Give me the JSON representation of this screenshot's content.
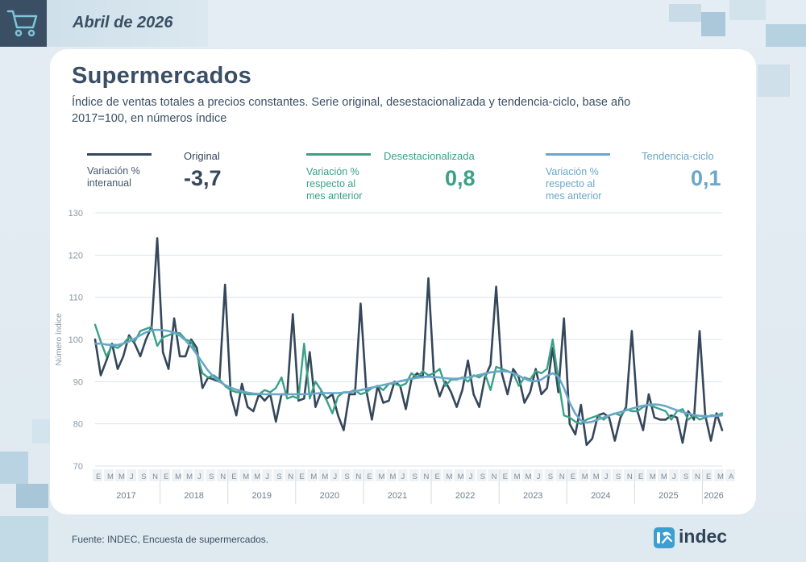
{
  "header": {
    "date": "Abril de 2026",
    "cart_icon": "shopping-cart-icon"
  },
  "title": "Supermercados",
  "subtitle": "Índice de ventas totales a precios constantes. Serie original, desestacionalizada y tendencia-ciclo, base año 2017=100, en números índice",
  "legend": {
    "original": {
      "name": "Original",
      "desc": "Variación % interanual",
      "value": "-3,7",
      "color": "#34475b"
    },
    "desest": {
      "name": "Desestacionalizada",
      "desc": "Variación % respecto al mes anterior",
      "value": "0,8",
      "color": "#3aa187"
    },
    "tendencia": {
      "name": "Tendencia-ciclo",
      "desc": "Variación % respecto al mes anterior",
      "value": "0,1",
      "color": "#6aa7c8"
    }
  },
  "chart_data": {
    "type": "line",
    "ylabel": "Número índice",
    "ylim": [
      70,
      130
    ],
    "yticks": [
      70,
      80,
      90,
      100,
      110,
      120,
      130
    ],
    "month_ticks": [
      "E",
      "M",
      "M",
      "J",
      "S",
      "N",
      "E",
      "M",
      "M",
      "J",
      "S",
      "N",
      "E",
      "M",
      "M",
      "J",
      "S",
      "N",
      "E",
      "M",
      "M",
      "J",
      "S",
      "N",
      "E",
      "M",
      "M",
      "J",
      "S",
      "N",
      "E",
      "M",
      "M",
      "J",
      "S",
      "N",
      "E",
      "M",
      "M",
      "J",
      "S",
      "N",
      "E",
      "M",
      "M",
      "J",
      "S",
      "N",
      "E",
      "M",
      "M",
      "J",
      "S",
      "N",
      "E",
      "M",
      "A"
    ],
    "years": [
      "2017",
      "2018",
      "2019",
      "2020",
      "2021",
      "2022",
      "2023",
      "2024",
      "2025",
      "2026"
    ],
    "x_start": "2017-01",
    "x_end": "2026-04",
    "series": [
      {
        "name": "Original",
        "color": "#34475b",
        "values": [
          100.0,
          91.5,
          95.0,
          99.0,
          93.0,
          96.0,
          101.0,
          99.0,
          96.0,
          100.0,
          103.0,
          124.0,
          97.0,
          93.0,
          105.0,
          96.0,
          96.0,
          100.0,
          98.0,
          88.5,
          91.0,
          90.5,
          90.0,
          113.0,
          87.0,
          82.0,
          89.5,
          84.0,
          83.0,
          87.0,
          85.5,
          87.0,
          80.5,
          87.0,
          87.0,
          106.0,
          85.5,
          86.0,
          97.0,
          84.0,
          87.5,
          86.0,
          87.0,
          82.0,
          78.5,
          87.0,
          87.0,
          108.5,
          88.0,
          81.0,
          89.0,
          85.0,
          85.5,
          90.0,
          89.0,
          83.5,
          90.5,
          92.0,
          91.0,
          114.5,
          91.0,
          86.5,
          90.0,
          87.5,
          84.0,
          88.0,
          95.0,
          87.0,
          84.0,
          91.0,
          94.0,
          112.5,
          92.0,
          87.0,
          93.0,
          91.0,
          85.0,
          87.5,
          93.0,
          87.0,
          88.5,
          98.0,
          87.5,
          105.0,
          80.0,
          77.5,
          84.5,
          75.0,
          76.5,
          82.0,
          82.5,
          81.5,
          76.0,
          81.5,
          84.0,
          102.0,
          83.0,
          78.5,
          87.0,
          81.5,
          81.0,
          81.0,
          82.0,
          81.5,
          75.5,
          83.0,
          81.0,
          102.0,
          82.0,
          76.0,
          82.5,
          78.5
        ]
      },
      {
        "name": "Desestacionalizada",
        "color": "#3aa187",
        "values": [
          103.5,
          99.5,
          96.0,
          98.5,
          98.0,
          99.0,
          100.5,
          99.5,
          102.0,
          102.5,
          103.0,
          98.5,
          100.5,
          101.0,
          101.5,
          101.5,
          100.0,
          99.5,
          96.5,
          92.0,
          91.0,
          91.5,
          90.5,
          89.0,
          88.0,
          87.5,
          87.5,
          87.0,
          87.0,
          87.0,
          88.0,
          87.5,
          88.5,
          91.0,
          86.0,
          86.5,
          86.0,
          99.0,
          86.0,
          90.0,
          88.0,
          85.5,
          82.5,
          86.5,
          87.5,
          87.5,
          88.0,
          87.0,
          87.5,
          88.5,
          89.0,
          88.0,
          89.5,
          89.5,
          89.0,
          89.5,
          92.0,
          91.0,
          92.5,
          91.5,
          92.0,
          93.0,
          89.0,
          90.5,
          90.5,
          91.0,
          90.0,
          91.5,
          91.0,
          92.0,
          88.0,
          93.5,
          93.0,
          92.5,
          92.0,
          89.0,
          91.0,
          90.5,
          92.5,
          92.0,
          93.0,
          100.0,
          90.5,
          82.0,
          81.5,
          80.5,
          80.0,
          81.0,
          81.5,
          82.0,
          81.0,
          82.0,
          82.5,
          82.0,
          83.5,
          83.0,
          83.0,
          84.0,
          84.5,
          84.0,
          83.5,
          83.0,
          81.0,
          83.0,
          83.5,
          81.0,
          82.0,
          81.0,
          81.5,
          82.0,
          82.0,
          82.5
        ]
      },
      {
        "name": "Tendencia-ciclo",
        "color": "#6aa7c8",
        "values": [
          99.0,
          99.0,
          98.8,
          98.7,
          98.7,
          99.0,
          99.5,
          100.2,
          101.0,
          101.7,
          102.2,
          102.3,
          102.2,
          102.0,
          101.6,
          100.9,
          99.8,
          98.3,
          96.5,
          94.5,
          92.6,
          91.1,
          90.0,
          89.2,
          88.6,
          88.1,
          87.7,
          87.4,
          87.2,
          87.1,
          87.0,
          87.0,
          87.0,
          87.0,
          87.0,
          87.0,
          87.0,
          87.0,
          87.1,
          87.2,
          87.3,
          87.3,
          87.3,
          87.3,
          87.4,
          87.5,
          87.7,
          88.0,
          88.3,
          88.6,
          88.9,
          89.2,
          89.5,
          89.8,
          90.1,
          90.4,
          90.7,
          90.9,
          91.1,
          91.2,
          91.1,
          91.0,
          90.8,
          90.7,
          90.7,
          90.8,
          91.0,
          91.3,
          91.6,
          91.9,
          92.2,
          92.4,
          92.5,
          92.4,
          92.0,
          91.4,
          90.7,
          90.2,
          90.1,
          90.5,
          91.4,
          92.0,
          91.2,
          88.5,
          85.0,
          82.4,
          80.8,
          80.3,
          80.5,
          81.0,
          81.5,
          82.0,
          82.4,
          82.8,
          83.2,
          83.6,
          84.0,
          84.3,
          84.5,
          84.6,
          84.5,
          84.2,
          83.7,
          83.2,
          82.8,
          82.4,
          82.1,
          81.9,
          81.8,
          81.8,
          81.9,
          82.0
        ]
      }
    ]
  },
  "footer": {
    "source": "Fuente: INDEC, Encuesta de supermercados.",
    "logo_text": "indec",
    "logo_icon": "indec-logo-icon"
  }
}
